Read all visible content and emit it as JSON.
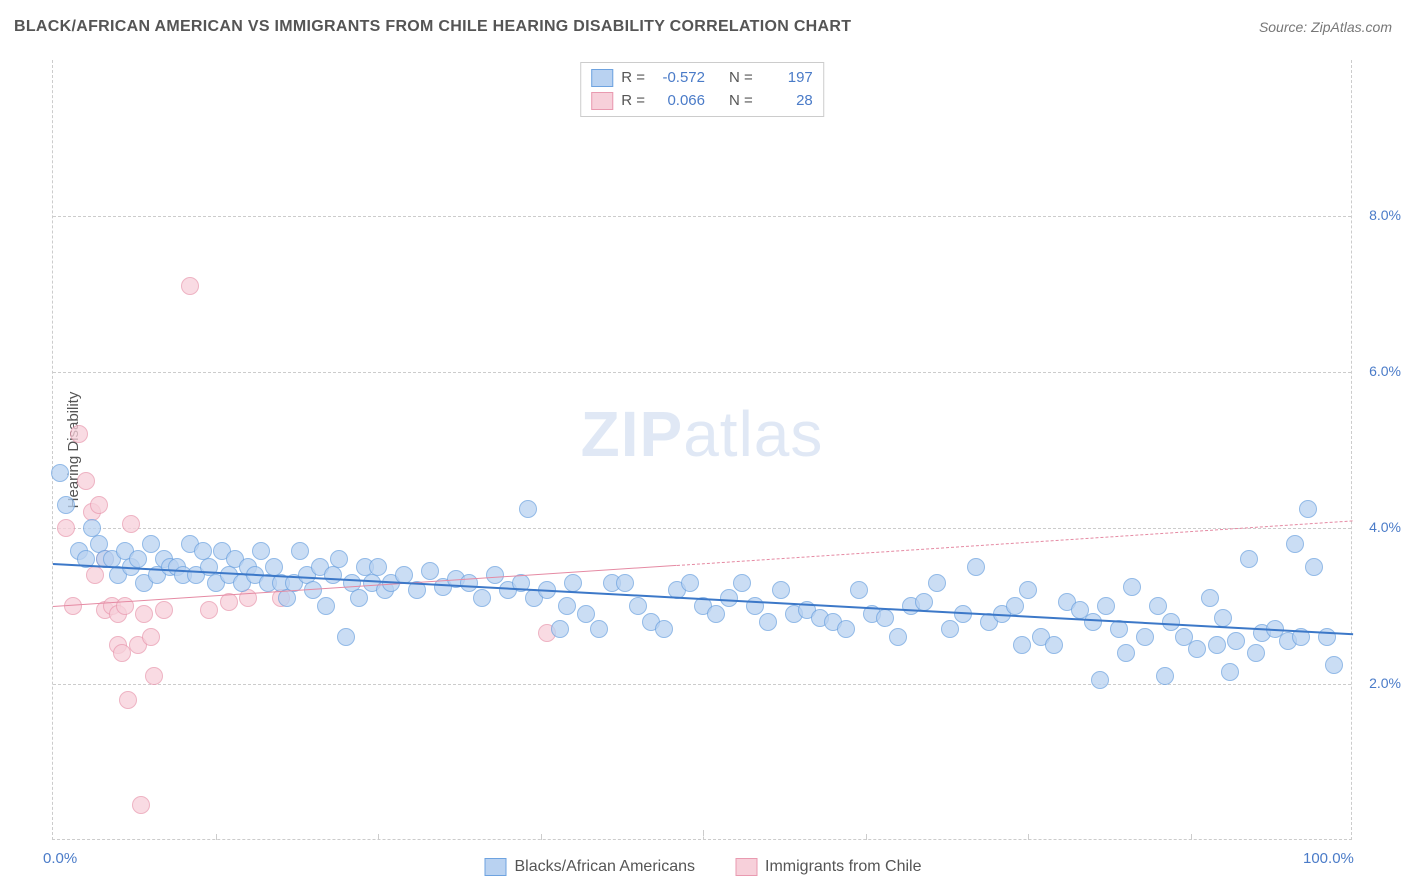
{
  "header": {
    "title": "BLACK/AFRICAN AMERICAN VS IMMIGRANTS FROM CHILE HEARING DISABILITY CORRELATION CHART",
    "source": "Source: ZipAtlas.com"
  },
  "watermark": {
    "part1": "ZIP",
    "part2": "atlas"
  },
  "chart": {
    "type": "scatter",
    "axis_title_y": "Hearing Disability",
    "xlim": [
      0,
      100
    ],
    "ylim": [
      0,
      10
    ],
    "y_ticks": [
      2.0,
      4.0,
      6.0,
      8.0
    ],
    "y_tick_labels": [
      "2.0%",
      "4.0%",
      "6.0%",
      "8.0%"
    ],
    "x_ticks": [
      0,
      50,
      100
    ],
    "x_tick_labels": [
      "0.0%",
      "",
      "100.0%"
    ],
    "grid_color": "#cccccc",
    "background_color": "#ffffff",
    "label_fontsize": 15,
    "label_color": "#4a7bc8",
    "marker_radius": 9,
    "marker_border_width": 1.2,
    "series": {
      "blue": {
        "label": "Blacks/African Americans",
        "fill": "#b9d2f1",
        "stroke": "#6ea3e0",
        "r": "-0.572",
        "n": "197",
        "trend": {
          "y_at_0": 3.55,
          "y_at_100": 2.65,
          "color": "#3c78c8",
          "width": 2.5,
          "solid_until": 100
        },
        "points": [
          [
            0.5,
            4.7
          ],
          [
            1,
            4.3
          ],
          [
            2,
            3.7
          ],
          [
            2.5,
            3.6
          ],
          [
            3,
            4.0
          ],
          [
            3.5,
            3.8
          ],
          [
            4,
            3.6
          ],
          [
            4.5,
            3.6
          ],
          [
            5,
            3.4
          ],
          [
            5.5,
            3.7
          ],
          [
            6,
            3.5
          ],
          [
            6.5,
            3.6
          ],
          [
            7,
            3.3
          ],
          [
            7.5,
            3.8
          ],
          [
            8,
            3.4
          ],
          [
            8.5,
            3.6
          ],
          [
            9,
            3.5
          ],
          [
            9.5,
            3.5
          ],
          [
            10,
            3.4
          ],
          [
            10.5,
            3.8
          ],
          [
            11,
            3.4
          ],
          [
            11.5,
            3.7
          ],
          [
            12,
            3.5
          ],
          [
            12.5,
            3.3
          ],
          [
            13,
            3.7
          ],
          [
            13.5,
            3.4
          ],
          [
            14,
            3.6
          ],
          [
            14.5,
            3.3
          ],
          [
            15,
            3.5
          ],
          [
            15.5,
            3.4
          ],
          [
            16,
            3.7
          ],
          [
            16.5,
            3.3
          ],
          [
            17,
            3.5
          ],
          [
            17.5,
            3.3
          ],
          [
            18,
            3.1
          ],
          [
            18.5,
            3.3
          ],
          [
            19,
            3.7
          ],
          [
            19.5,
            3.4
          ],
          [
            20,
            3.2
          ],
          [
            20.5,
            3.5
          ],
          [
            21,
            3.0
          ],
          [
            21.5,
            3.4
          ],
          [
            22,
            3.6
          ],
          [
            22.5,
            2.6
          ],
          [
            23,
            3.3
          ],
          [
            23.5,
            3.1
          ],
          [
            24,
            3.5
          ],
          [
            24.5,
            3.3
          ],
          [
            25,
            3.5
          ],
          [
            25.5,
            3.2
          ],
          [
            26,
            3.3
          ],
          [
            27,
            3.4
          ],
          [
            28,
            3.2
          ],
          [
            29,
            3.45
          ],
          [
            30,
            3.25
          ],
          [
            31,
            3.35
          ],
          [
            32,
            3.3
          ],
          [
            33,
            3.1
          ],
          [
            34,
            3.4
          ],
          [
            35,
            3.2
          ],
          [
            36,
            3.3
          ],
          [
            36.5,
            4.25
          ],
          [
            37,
            3.1
          ],
          [
            38,
            3.2
          ],
          [
            39,
            2.7
          ],
          [
            39.5,
            3.0
          ],
          [
            40,
            3.3
          ],
          [
            41,
            2.9
          ],
          [
            42,
            2.7
          ],
          [
            43,
            3.3
          ],
          [
            44,
            3.3
          ],
          [
            45,
            3.0
          ],
          [
            46,
            2.8
          ],
          [
            47,
            2.7
          ],
          [
            48,
            3.2
          ],
          [
            49,
            3.3
          ],
          [
            50,
            3.0
          ],
          [
            51,
            2.9
          ],
          [
            52,
            3.1
          ],
          [
            53,
            3.3
          ],
          [
            54,
            3.0
          ],
          [
            55,
            2.8
          ],
          [
            56,
            3.2
          ],
          [
            57,
            2.9
          ],
          [
            58,
            2.95
          ],
          [
            59,
            2.85
          ],
          [
            60,
            2.8
          ],
          [
            61,
            2.7
          ],
          [
            62,
            3.2
          ],
          [
            63,
            2.9
          ],
          [
            64,
            2.85
          ],
          [
            65,
            2.6
          ],
          [
            66,
            3.0
          ],
          [
            67,
            3.05
          ],
          [
            68,
            3.3
          ],
          [
            69,
            2.7
          ],
          [
            70,
            2.9
          ],
          [
            71,
            3.5
          ],
          [
            72,
            2.8
          ],
          [
            73,
            2.9
          ],
          [
            74,
            3.0
          ],
          [
            74.5,
            2.5
          ],
          [
            75,
            3.2
          ],
          [
            76,
            2.6
          ],
          [
            77,
            2.5
          ],
          [
            78,
            3.05
          ],
          [
            79,
            2.95
          ],
          [
            80,
            2.8
          ],
          [
            80.5,
            2.05
          ],
          [
            81,
            3.0
          ],
          [
            82,
            2.7
          ],
          [
            82.5,
            2.4
          ],
          [
            83,
            3.25
          ],
          [
            84,
            2.6
          ],
          [
            85,
            3.0
          ],
          [
            85.5,
            2.1
          ],
          [
            86,
            2.8
          ],
          [
            87,
            2.6
          ],
          [
            88,
            2.45
          ],
          [
            89,
            3.1
          ],
          [
            89.5,
            2.5
          ],
          [
            90,
            2.85
          ],
          [
            90.5,
            2.15
          ],
          [
            91,
            2.55
          ],
          [
            92,
            3.6
          ],
          [
            92.5,
            2.4
          ],
          [
            93,
            2.65
          ],
          [
            94,
            2.7
          ],
          [
            95,
            2.55
          ],
          [
            95.5,
            3.8
          ],
          [
            96,
            2.6
          ],
          [
            96.5,
            4.25
          ],
          [
            97,
            3.5
          ],
          [
            98,
            2.6
          ],
          [
            98.5,
            2.25
          ]
        ]
      },
      "pink": {
        "label": "Immigrants from Chile",
        "fill": "#f7d0da",
        "stroke": "#e99ab0",
        "r": "0.066",
        "n": "28",
        "trend": {
          "y_at_0": 3.0,
          "y_at_100": 4.1,
          "color": "#e58aa3",
          "width": 1.6,
          "solid_until": 48
        },
        "points": [
          [
            1,
            4.0
          ],
          [
            1.5,
            3.0
          ],
          [
            2,
            5.2
          ],
          [
            2.5,
            4.6
          ],
          [
            3,
            4.2
          ],
          [
            3.5,
            4.3
          ],
          [
            4,
            3.6
          ],
          [
            4,
            2.95
          ],
          [
            4.5,
            3.0
          ],
          [
            5,
            2.9
          ],
          [
            5,
            2.5
          ],
          [
            5.3,
            2.4
          ],
          [
            5.5,
            3.0
          ],
          [
            5.8,
            1.8
          ],
          [
            6,
            4.05
          ],
          [
            6.5,
            2.5
          ],
          [
            7,
            2.9
          ],
          [
            7.5,
            2.6
          ],
          [
            7.8,
            2.1
          ],
          [
            8.5,
            2.95
          ],
          [
            10.5,
            7.1
          ],
          [
            12,
            2.95
          ],
          [
            13.5,
            3.05
          ],
          [
            15,
            3.1
          ],
          [
            17.5,
            3.1
          ],
          [
            6.8,
            0.45
          ],
          [
            3.2,
            3.4
          ],
          [
            38,
            2.65
          ]
        ]
      }
    }
  },
  "stat_legend": {
    "rows": [
      {
        "swatch": "blue",
        "r_label": "R =",
        "r": "-0.572",
        "n_label": "N =",
        "n": "197"
      },
      {
        "swatch": "pink",
        "r_label": "R =",
        "r": "0.066",
        "n_label": "N =",
        "n": "28"
      }
    ]
  }
}
